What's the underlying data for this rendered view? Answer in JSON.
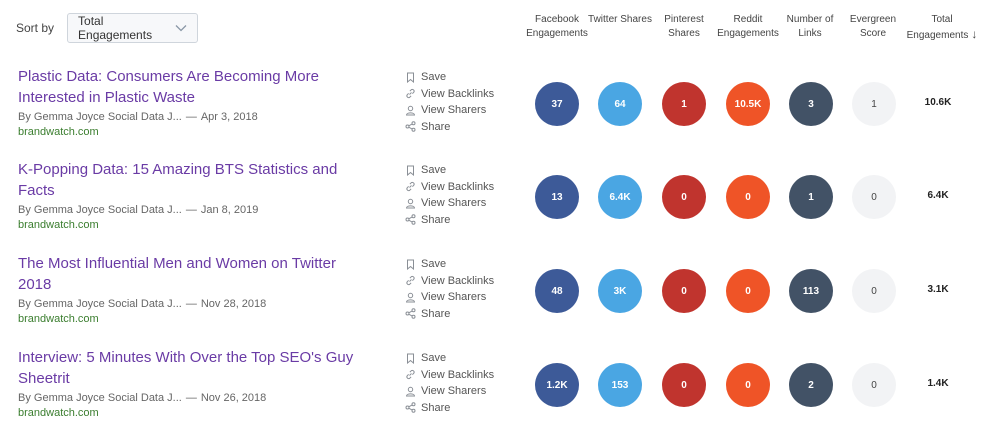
{
  "sort": {
    "label": "Sort by",
    "selected": "Total Engagements"
  },
  "columns": [
    {
      "label": "Facebook Engagements"
    },
    {
      "label": "Twitter Shares"
    },
    {
      "label": "Pinterest Shares"
    },
    {
      "label": "Reddit Engagements"
    },
    {
      "label": "Number of Links"
    },
    {
      "label": "Evergreen Score"
    },
    {
      "label": "Total Engagements",
      "sort_arrow": "↓"
    }
  ],
  "actions": {
    "save": "Save",
    "backlinks": "View Backlinks",
    "sharers": "View Sharers",
    "share": "Share"
  },
  "colors": {
    "title": "#6a3ba5",
    "domain": "#3b7e2f",
    "facebook": "#3d5a98",
    "twitter": "#4aa6e3",
    "pinterest": "#c0342e",
    "reddit": "#ef5427",
    "links": "#425266",
    "evergreen": "#f2f3f5"
  },
  "articles": [
    {
      "title": "Plastic Data: Consumers Are Becoming More Interested in Plastic Waste",
      "author": "By Gemma Joyce Social Data J...",
      "date": "Apr 3, 2018",
      "domain": "brandwatch.com",
      "facebook": "37",
      "twitter": "64",
      "pinterest": "1",
      "reddit": "10.5K",
      "links": "3",
      "evergreen": "1",
      "total": "10.6K"
    },
    {
      "title": "K-Popping Data: 15 Amazing BTS Statistics and Facts",
      "author": "By Gemma Joyce Social Data J...",
      "date": "Jan 8, 2019",
      "domain": "brandwatch.com",
      "facebook": "13",
      "twitter": "6.4K",
      "pinterest": "0",
      "reddit": "0",
      "links": "1",
      "evergreen": "0",
      "total": "6.4K"
    },
    {
      "title": "The Most Influential Men and Women on Twitter 2018",
      "author": "By Gemma Joyce Social Data J...",
      "date": "Nov 28, 2018",
      "domain": "brandwatch.com",
      "facebook": "48",
      "twitter": "3K",
      "pinterest": "0",
      "reddit": "0",
      "links": "113",
      "evergreen": "0",
      "total": "3.1K"
    },
    {
      "title": "Interview: 5 Minutes With Over the Top SEO's Guy Sheetrit",
      "author": "By Gemma Joyce Social Data J...",
      "date": "Nov 26, 2018",
      "domain": "brandwatch.com",
      "facebook": "1.2K",
      "twitter": "153",
      "pinterest": "0",
      "reddit": "0",
      "links": "2",
      "evergreen": "0",
      "total": "1.4K"
    }
  ]
}
